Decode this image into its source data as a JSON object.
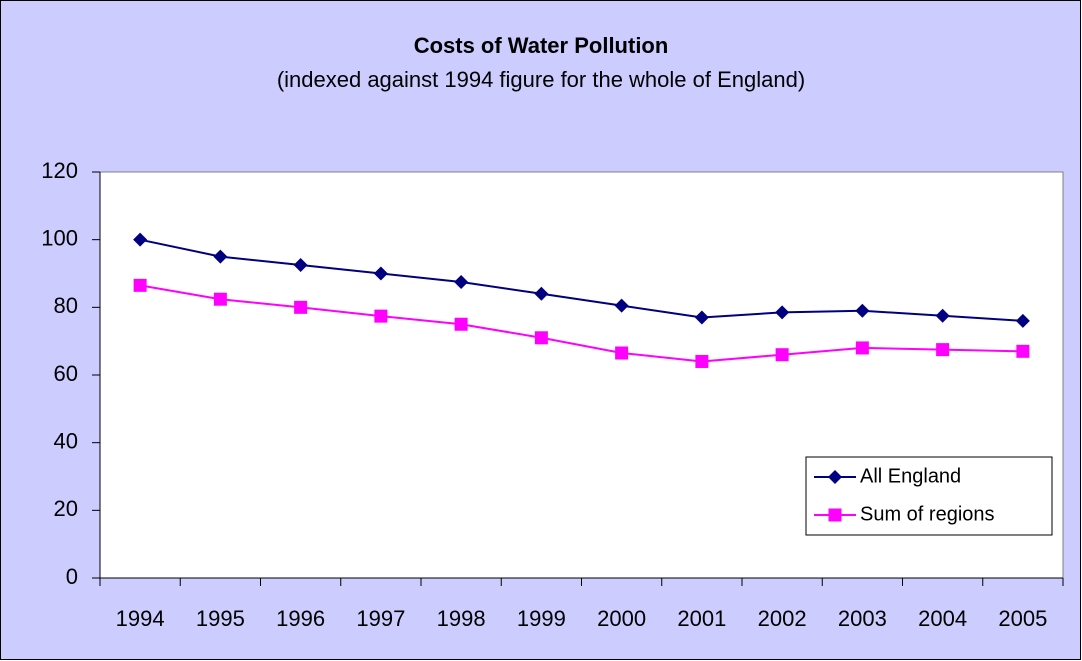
{
  "chart_data": {
    "type": "line",
    "title": "Costs of Water Pollution",
    "subtitle": "(indexed against 1994 figure for the whole of England)",
    "categories": [
      "1994",
      "1995",
      "1996",
      "1997",
      "1998",
      "1999",
      "2000",
      "2001",
      "2002",
      "2003",
      "2004",
      "2005"
    ],
    "series": [
      {
        "name": "All England",
        "color": "#000080",
        "marker": "diamond",
        "values": [
          100,
          95,
          92.5,
          90,
          87.5,
          84,
          80.5,
          77,
          78.5,
          79,
          77.5,
          76
        ]
      },
      {
        "name": "Sum of regions",
        "color": "#ff00ff",
        "marker": "square",
        "values": [
          86.5,
          82.4,
          80,
          77.4,
          75,
          71,
          66.5,
          64,
          66,
          68,
          67.5,
          67
        ]
      }
    ],
    "ylim": [
      0,
      120
    ],
    "yticks": [
      0,
      20,
      40,
      60,
      80,
      100,
      120
    ],
    "grid": false,
    "legend": "lower right"
  }
}
